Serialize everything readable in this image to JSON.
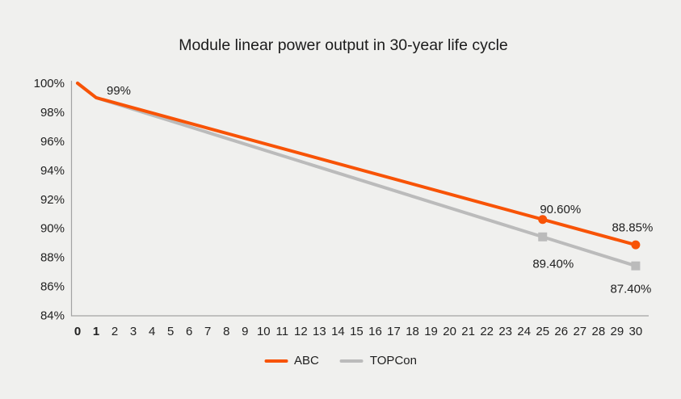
{
  "page": {
    "background_color": "#F0F0EE"
  },
  "chart_data": {
    "type": "line",
    "title": "Module linear power output in 30-year life cycle",
    "xlabel": "",
    "ylabel": "",
    "grid": "off",
    "legend_position": "bottom-center",
    "colors": {
      "axis": "#A3A3A3",
      "text": "#1E1E1E"
    },
    "x_axis": {
      "range": [
        0,
        30
      ],
      "ticks": [
        0,
        1,
        2,
        3,
        4,
        5,
        6,
        7,
        8,
        9,
        10,
        11,
        12,
        13,
        14,
        15,
        16,
        17,
        18,
        19,
        20,
        21,
        22,
        23,
        24,
        25,
        26,
        27,
        28,
        29,
        30
      ],
      "bold_ticks": [
        0,
        1
      ]
    },
    "y_axis": {
      "range": [
        84,
        100
      ],
      "ticks": [
        {
          "value": 100,
          "label": "100%"
        },
        {
          "value": 98,
          "label": "98%"
        },
        {
          "value": 96,
          "label": "96%"
        },
        {
          "value": 94,
          "label": "94%"
        },
        {
          "value": 92,
          "label": "92%"
        },
        {
          "value": 90,
          "label": "90%"
        },
        {
          "value": 88,
          "label": "88%"
        },
        {
          "value": 86,
          "label": "86%"
        },
        {
          "value": 84,
          "label": "84%"
        }
      ]
    },
    "series": [
      {
        "name": "ABC",
        "color": "#F85306",
        "marker": "circle",
        "points": [
          {
            "x": 0,
            "y": 100
          },
          {
            "x": 1,
            "y": 99,
            "label": "99%",
            "label_dx": 28,
            "label_dy": -9
          },
          {
            "x": 25,
            "y": 90.6,
            "label": "90.60%",
            "label_dx": 22,
            "label_dy": -13,
            "marker": true
          },
          {
            "x": 30,
            "y": 88.85,
            "label": "88.85%",
            "label_dx": -4,
            "label_dy": -22,
            "marker": true
          }
        ]
      },
      {
        "name": "TOPCon",
        "color": "#BBBBBB",
        "marker": "square",
        "points": [
          {
            "x": 0,
            "y": 100
          },
          {
            "x": 1,
            "y": 99
          },
          {
            "x": 25,
            "y": 89.4,
            "label": "89.40%",
            "label_dx": 13,
            "label_dy": 33,
            "marker": true
          },
          {
            "x": 30,
            "y": 87.4,
            "label": "87.40%",
            "label_dx": -6,
            "label_dy": 28,
            "marker": true
          }
        ]
      }
    ]
  }
}
